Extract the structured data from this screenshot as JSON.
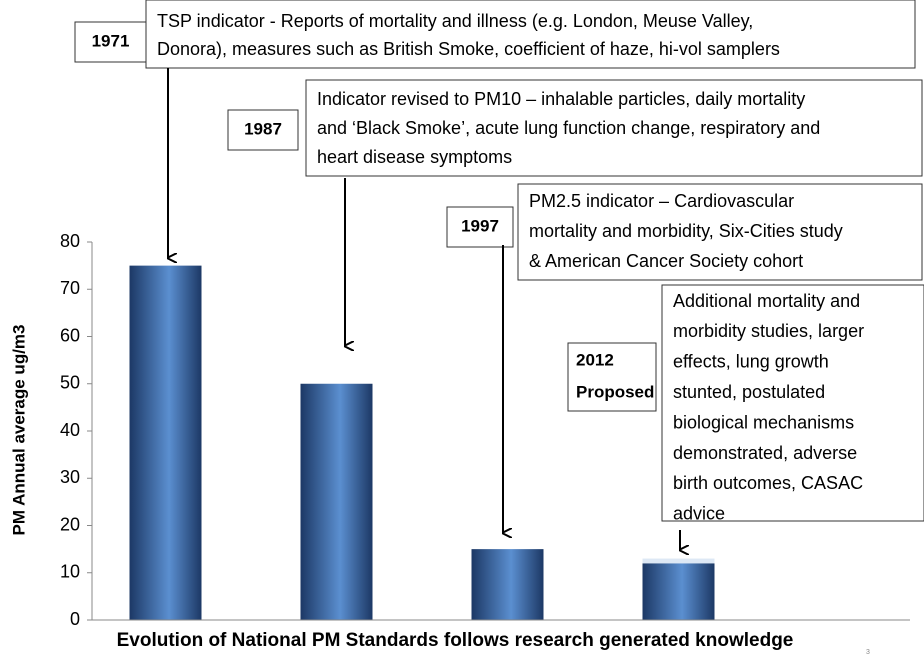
{
  "chart_data": {
    "type": "bar",
    "x_label": "Evolution of National PM Standards follows research generated knowledge",
    "y_label": "PM Annual average ug/m3",
    "categories": [
      null,
      null,
      null,
      null
    ],
    "series": [
      {
        "color": "#5b8fd0",
        "values": [
          75,
          50,
          15,
          12
        ]
      },
      {
        "color": "#dde8f5",
        "values": [
          null,
          null,
          null,
          1
        ]
      }
    ],
    "ylim": [
      0,
      80
    ],
    "yticks": [
      0,
      10,
      20,
      30,
      40,
      50,
      60,
      70,
      80
    ],
    "annotations": [
      {
        "label": [
          "1971"
        ],
        "text": [
          "TSP indicator - Reports of mortality and illness (e.g. London, Meuse Valley,",
          "Donora), measures such as British Smoke, coefficient of haze, hi-vol samplers"
        ]
      },
      {
        "label": [
          "1987"
        ],
        "text": [
          "Indicator revised to PM10 – inhalable particles, daily mortality",
          "and ‘Black Smoke’, acute lung function change, respiratory and",
          "heart disease symptoms"
        ]
      },
      {
        "label": [
          "1997"
        ],
        "text": [
          "PM2.5 indicator – Cardiovascular",
          "mortality and morbidity, Six-Cities study",
          "& American Cancer Society cohort"
        ]
      },
      {
        "label": [
          "2012",
          "Proposed"
        ],
        "text": [
          "Additional mortality and",
          "morbidity studies, larger",
          "effects, lung growth",
          "stunted, postulated",
          "biological mechanisms",
          "demonstrated, adverse",
          "birth outcomes, CASAC",
          "advice"
        ]
      }
    ],
    "page_number": "3"
  }
}
